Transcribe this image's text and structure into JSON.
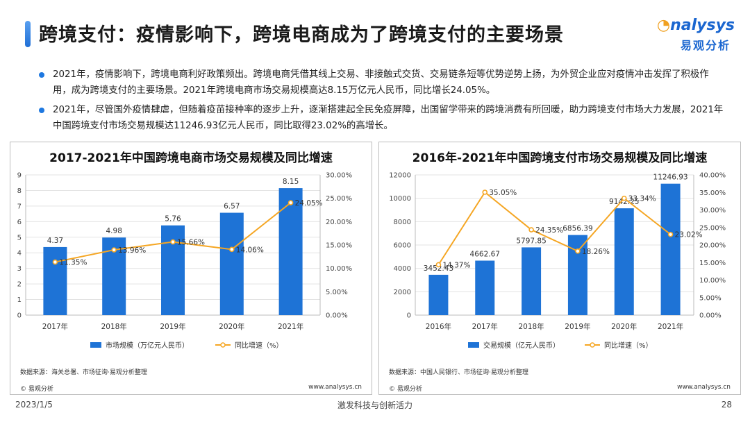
{
  "header": {
    "title": "跨境支付：疫情影响下，跨境电商成为了跨境支付的主要场景",
    "logo_en_rest": "nalysys",
    "logo_cn": "易观分析"
  },
  "bullets": [
    "2021年，疫情影响下，跨境电商利好政策频出。跨境电商凭借其线上交易、非接触式交货、交易链条短等优势逆势上扬，为外贸企业应对疫情冲击发挥了积极作用，成为跨境支付的主要场景。2021年跨境电商市场交易规模高达8.15万亿元人民币，同比增长24.05%。",
    "2021年，尽管国外疫情肆虐，但随着疫苗接种率的逐步上升，逐渐搭建起全民免疫屏障，出国留学带来的跨境消费有所回暖，助力跨境支付市场大力发展，2021年中国跨境支付市场交易规模达11246.93亿元人民币，同比取得23.02%的高增长。"
  ],
  "panels": [
    {
      "source": "数据来源：海关总署、市场征询·易观分析整理",
      "copyright": "© 易观分析",
      "website": "www.analysys.cn"
    },
    {
      "source": "数据来源：中国人民银行、市场征询·易观分析整理",
      "copyright": "© 易观分析",
      "website": "www.analysys.cn"
    }
  ],
  "chart_data": [
    {
      "type": "bar",
      "title": "2017-2021年中国跨境电商市场交易规模及同比增速",
      "categories": [
        "2017年",
        "2018年",
        "2019年",
        "2020年",
        "2021年"
      ],
      "series": [
        {
          "name": "市场规模（万亿元人民币）",
          "type": "bar",
          "axis": "left",
          "values": [
            4.37,
            4.98,
            5.76,
            6.57,
            8.15
          ],
          "labels": [
            "4.37",
            "4.98",
            "5.76",
            "6.57",
            "8.15"
          ]
        },
        {
          "name": "同比增速（%）",
          "type": "line",
          "axis": "right",
          "values": [
            11.35,
            13.96,
            15.66,
            14.06,
            24.05
          ],
          "labels": [
            "11.35%",
            "13.96%",
            "15.66%",
            "14.06%",
            "24.05%"
          ]
        }
      ],
      "ylim": [
        0,
        9
      ],
      "yticks": [
        "0",
        "1",
        "2",
        "3",
        "4",
        "5",
        "6",
        "7",
        "8",
        "9"
      ],
      "y2lim": [
        0,
        30
      ],
      "y2ticks": [
        "0.00%",
        "5.00%",
        "10.00%",
        "15.00%",
        "20.00%",
        "25.00%",
        "30.00%"
      ],
      "grid": true,
      "legend": "bottom",
      "colors": {
        "bar": "#1e73d6",
        "line": "#f5a623"
      }
    },
    {
      "type": "bar",
      "title": "2016年-2021年中国跨境支付市场交易规模及同比增速",
      "categories": [
        "2016年",
        "2017年",
        "2018年",
        "2019年",
        "2020年",
        "2021年"
      ],
      "series": [
        {
          "name": "交易规模（亿元人民币）",
          "type": "bar",
          "axis": "left",
          "values": [
            3452.43,
            4662.67,
            5797.85,
            6856.39,
            9142.25,
            11246.93
          ],
          "labels": [
            "3452.43",
            "4662.67",
            "5797.85",
            "6856.39",
            "9142.25",
            "11246.93"
          ]
        },
        {
          "name": "同比增速（%）",
          "type": "line",
          "axis": "right",
          "values": [
            14.37,
            35.05,
            24.35,
            18.26,
            33.34,
            23.02
          ],
          "labels": [
            "14.37%",
            "35.05%",
            "24.35%",
            "18.26%",
            "33.34%",
            "23.02%"
          ]
        }
      ],
      "ylim": [
        0,
        12000
      ],
      "yticks": [
        "0",
        "2000",
        "4000",
        "6000",
        "8000",
        "10000",
        "12000"
      ],
      "y2lim": [
        0,
        40
      ],
      "y2ticks": [
        "0.00%",
        "5.00%",
        "10.00%",
        "15.00%",
        "20.00%",
        "25.00%",
        "30.00%",
        "35.00%",
        "40.00%"
      ],
      "grid": true,
      "legend": "bottom",
      "colors": {
        "bar": "#1e73d6",
        "line": "#f5a623"
      }
    }
  ],
  "footer": {
    "date": "2023/1/5",
    "slogan": "激发科技与创新活力",
    "page": "28"
  }
}
